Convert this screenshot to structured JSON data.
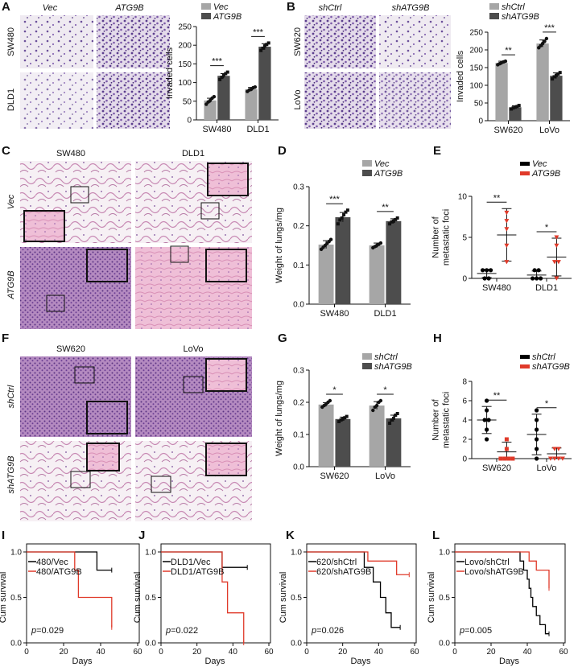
{
  "colors": {
    "light_bar": "#a6a6a6",
    "dark_bar": "#4d4d4d",
    "ctrl": "#000000",
    "treat": "#e03a2a",
    "stain_bg": "#eee8f0",
    "he_bg": "#f3e4ee"
  },
  "panel_labels": [
    "A",
    "B",
    "C",
    "D",
    "E",
    "F",
    "G",
    "H",
    "I",
    "J",
    "K",
    "L"
  ],
  "panel_A": {
    "col_labels": [
      "Vec",
      "ATG9B"
    ],
    "row_labels": [
      "SW480",
      "DLD1"
    ]
  },
  "panel_B": {
    "col_labels": [
      "shCtrl",
      "shATG9B"
    ],
    "row_labels": [
      "SW620",
      "LoVo"
    ]
  },
  "panel_C": {
    "col_labels": [
      "SW480",
      "DLD1"
    ],
    "row_labels": [
      "Vec",
      "ATG9B"
    ]
  },
  "panel_F": {
    "col_labels": [
      "SW620",
      "LoVo"
    ],
    "row_labels": [
      "shCtrl",
      "shATG9B"
    ]
  },
  "chart_data": [
    {
      "id": "A_chart",
      "type": "bar",
      "categories": [
        "SW480",
        "DLD1"
      ],
      "ylabel": "Invaded cells",
      "ylim": [
        0,
        250
      ],
      "yticks": [
        0,
        50,
        100,
        150,
        200,
        250
      ],
      "series": [
        {
          "name": "Vec",
          "values": [
            52,
            82
          ],
          "err": [
            6,
            5
          ],
          "points": [
            [
              42,
              48,
              52,
              58,
              62
            ],
            [
              76,
              80,
              82,
              86,
              88
            ]
          ]
        },
        {
          "name": "ATG9B",
          "values": [
            118,
            196
          ],
          "err": [
            6,
            8
          ],
          "points": [
            [
              108,
              114,
              120,
              124,
              128
            ],
            [
              186,
              192,
              198,
              202,
              206
            ]
          ]
        }
      ],
      "significance": [
        "***",
        "***"
      ]
    },
    {
      "id": "B_chart",
      "type": "bar",
      "categories": [
        "SW620",
        "LoVo"
      ],
      "ylabel": "Invaded cells",
      "ylim": [
        0,
        250
      ],
      "yticks": [
        0,
        50,
        100,
        150,
        200,
        250
      ],
      "series": [
        {
          "name": "shCtrl",
          "values": [
            163,
            218
          ],
          "err": [
            5,
            10
          ],
          "points": [
            [
              158,
              161,
              164,
              166,
              168
            ],
            [
              206,
              212,
              218,
              224,
              232
            ]
          ]
        },
        {
          "name": "shATG9B",
          "values": [
            38,
            127
          ],
          "err": [
            4,
            8
          ],
          "points": [
            [
              33,
              36,
              38,
              40,
              43
            ],
            [
              118,
              124,
              128,
              132,
              136
            ]
          ]
        }
      ],
      "significance": [
        "**",
        "***"
      ]
    },
    {
      "id": "D_chart",
      "type": "bar",
      "categories": [
        "SW480",
        "DLD1"
      ],
      "ylabel": "Weight of lungs/mg",
      "ylim": [
        0,
        0.3
      ],
      "yticks": [
        0.0,
        0.1,
        0.2,
        0.3
      ],
      "series": [
        {
          "name": "Vec",
          "values": [
            0.152,
            0.15
          ],
          "err": [
            0.01,
            0.006
          ],
          "points": [
            [
              0.14,
              0.145,
              0.15,
              0.155,
              0.16,
              0.165
            ],
            [
              0.144,
              0.147,
              0.15,
              0.153,
              0.156
            ]
          ]
        },
        {
          "name": "ATG9B",
          "values": [
            0.222,
            0.212
          ],
          "err": [
            0.012,
            0.006
          ],
          "points": [
            [
              0.205,
              0.215,
              0.22,
              0.228,
              0.235,
              0.24
            ],
            [
              0.205,
              0.21,
              0.212,
              0.216,
              0.22
            ]
          ]
        }
      ],
      "significance": [
        "***",
        "**"
      ]
    },
    {
      "id": "E_chart",
      "type": "scatter",
      "categories": [
        "SW480",
        "DLD1"
      ],
      "ylabel": "Number of metastatic foci",
      "ylim": [
        0,
        10
      ],
      "yticks": [
        0,
        5,
        10
      ],
      "series": [
        {
          "name": "Vec",
          "mean": [
            0.6,
            0.4
          ],
          "sd": [
            0.5,
            0.5
          ],
          "points": [
            [
              0,
              0,
              1,
              1,
              1
            ],
            [
              0,
              0,
              0,
              1,
              1
            ]
          ]
        },
        {
          "name": "ATG9B",
          "mean": [
            5.3,
            2.6
          ],
          "sd": [
            3.2,
            2.3
          ],
          "points": [
            [
              2,
              4,
              6,
              7,
              8
            ],
            [
              0,
              2,
              2,
              4,
              5
            ]
          ]
        }
      ],
      "significance": [
        "**",
        "*"
      ]
    },
    {
      "id": "G_chart",
      "type": "bar",
      "categories": [
        "SW620",
        "LoVo"
      ],
      "ylabel": "Weight of lungs/mg",
      "ylim": [
        0,
        0.3
      ],
      "yticks": [
        0.0,
        0.1,
        0.2,
        0.3
      ],
      "series": [
        {
          "name": "shCtrl",
          "values": [
            0.193,
            0.19
          ],
          "err": [
            0.006,
            0.012
          ],
          "points": [
            [
              0.185,
              0.19,
              0.195,
              0.2,
              0.205
            ],
            [
              0.175,
              0.185,
              0.19,
              0.2,
              0.205
            ]
          ]
        },
        {
          "name": "shATG9B",
          "values": [
            0.148,
            0.15
          ],
          "err": [
            0.006,
            0.01
          ],
          "points": [
            [
              0.14,
              0.145,
              0.148,
              0.152,
              0.156
            ],
            [
              0.135,
              0.145,
              0.15,
              0.16,
              0.165
            ]
          ]
        }
      ],
      "significance": [
        "*",
        "*"
      ]
    },
    {
      "id": "H_chart",
      "type": "scatter",
      "categories": [
        "SW620",
        "LoVo"
      ],
      "ylabel": "Number of metastatic foci",
      "ylim": [
        0,
        8
      ],
      "yticks": [
        0,
        2,
        4,
        6,
        8
      ],
      "series": [
        {
          "name": "shCtrl",
          "mean": [
            4.0,
            2.5
          ],
          "sd": [
            1.4,
            2.1
          ],
          "points": [
            [
              2,
              3,
              4,
              4,
              5,
              6
            ],
            [
              0,
              1,
              2,
              3,
              4,
              5
            ]
          ]
        },
        {
          "name": "shATG9B",
          "mean": [
            0.7,
            0.5
          ],
          "sd": [
            1.0,
            0.6
          ],
          "points": [
            [
              0,
              0,
              0,
              0,
              1,
              2
            ],
            [
              0,
              0,
              0,
              0,
              1,
              1
            ]
          ]
        }
      ],
      "significance": [
        "**",
        "*"
      ]
    },
    {
      "id": "I_chart",
      "type": "line",
      "xlabel": "Days",
      "ylabel": "Cum survival",
      "xlim": [
        0,
        60
      ],
      "ylim": [
        0,
        1.0
      ],
      "xticks": [
        0,
        20,
        40,
        60
      ],
      "yticks": [
        0.0,
        0.5,
        1.0
      ],
      "pvalue": "0.029",
      "series": [
        {
          "name": "480/Vec",
          "steps": [
            [
              0,
              1.0
            ],
            [
              38,
              1.0
            ],
            [
              38,
              0.8
            ],
            [
              46,
              0.8
            ]
          ]
        },
        {
          "name": "480/ATG9B",
          "steps": [
            [
              0,
              1.0
            ],
            [
              26,
              1.0
            ],
            [
              26,
              0.8
            ],
            [
              28,
              0.8
            ],
            [
              28,
              0.5
            ],
            [
              46,
              0.5
            ],
            [
              46,
              0.17
            ]
          ]
        }
      ]
    },
    {
      "id": "J_chart",
      "type": "line",
      "xlabel": "Days",
      "ylabel": "Cum survival",
      "xlim": [
        0,
        60
      ],
      "ylim": [
        0,
        1.0
      ],
      "xticks": [
        0,
        20,
        40,
        60
      ],
      "yticks": [
        0.0,
        0.5,
        1.0
      ],
      "pvalue": "0.022",
      "series": [
        {
          "name": "DLD1/Vec",
          "steps": [
            [
              0,
              1.0
            ],
            [
              34,
              1.0
            ],
            [
              34,
              0.83
            ],
            [
              48,
              0.83
            ]
          ]
        },
        {
          "name": "DLD1/ATG9B",
          "steps": [
            [
              0,
              1.0
            ],
            [
              34,
              1.0
            ],
            [
              34,
              0.67
            ],
            [
              37,
              0.67
            ],
            [
              37,
              0.33
            ],
            [
              46,
              0.33
            ],
            [
              46,
              0.0
            ]
          ]
        }
      ]
    },
    {
      "id": "K_chart",
      "type": "line",
      "xlabel": "Days",
      "ylabel": "Cum survival",
      "xlim": [
        0,
        60
      ],
      "ylim": [
        0,
        1.0
      ],
      "xticks": [
        0,
        20,
        40,
        60
      ],
      "yticks": [
        0.0,
        0.5,
        1.0
      ],
      "pvalue": "0.026",
      "series": [
        {
          "name": "620/shCtrl",
          "steps": [
            [
              0,
              1.0
            ],
            [
              32,
              1.0
            ],
            [
              32,
              0.83
            ],
            [
              37,
              0.83
            ],
            [
              37,
              0.67
            ],
            [
              41,
              0.67
            ],
            [
              41,
              0.5
            ],
            [
              44,
              0.5
            ],
            [
              44,
              0.33
            ],
            [
              47,
              0.33
            ],
            [
              47,
              0.17
            ],
            [
              52,
              0.17
            ]
          ]
        },
        {
          "name": "620/shATG9B",
          "steps": [
            [
              0,
              1.0
            ],
            [
              34,
              1.0
            ],
            [
              34,
              0.9
            ],
            [
              50,
              0.9
            ],
            [
              50,
              0.75
            ],
            [
              57,
              0.75
            ]
          ]
        }
      ]
    },
    {
      "id": "L_chart",
      "type": "line",
      "xlabel": "Days",
      "ylabel": "Cum survival",
      "xlim": [
        0,
        60
      ],
      "ylim": [
        0,
        1.0
      ],
      "xticks": [
        0,
        20,
        40,
        60
      ],
      "yticks": [
        0.0,
        0.5,
        1.0
      ],
      "pvalue": "0.005",
      "series": [
        {
          "name": "Lovo/shCtrl",
          "steps": [
            [
              0,
              1.0
            ],
            [
              36,
              1.0
            ],
            [
              36,
              0.9
            ],
            [
              38,
              0.9
            ],
            [
              38,
              0.8
            ],
            [
              40,
              0.8
            ],
            [
              40,
              0.7
            ],
            [
              41,
              0.7
            ],
            [
              41,
              0.6
            ],
            [
              42,
              0.6
            ],
            [
              42,
              0.5
            ],
            [
              43,
              0.5
            ],
            [
              43,
              0.4
            ],
            [
              45,
              0.4
            ],
            [
              45,
              0.3
            ],
            [
              47,
              0.3
            ],
            [
              47,
              0.2
            ],
            [
              50,
              0.2
            ],
            [
              50,
              0.1
            ],
            [
              52,
              0.1
            ]
          ]
        },
        {
          "name": "Lovo/shATG9B",
          "steps": [
            [
              0,
              1.0
            ],
            [
              41,
              1.0
            ],
            [
              41,
              0.9
            ],
            [
              45,
              0.9
            ],
            [
              45,
              0.8
            ],
            [
              52,
              0.8
            ],
            [
              52,
              0.6
            ]
          ]
        }
      ]
    }
  ]
}
